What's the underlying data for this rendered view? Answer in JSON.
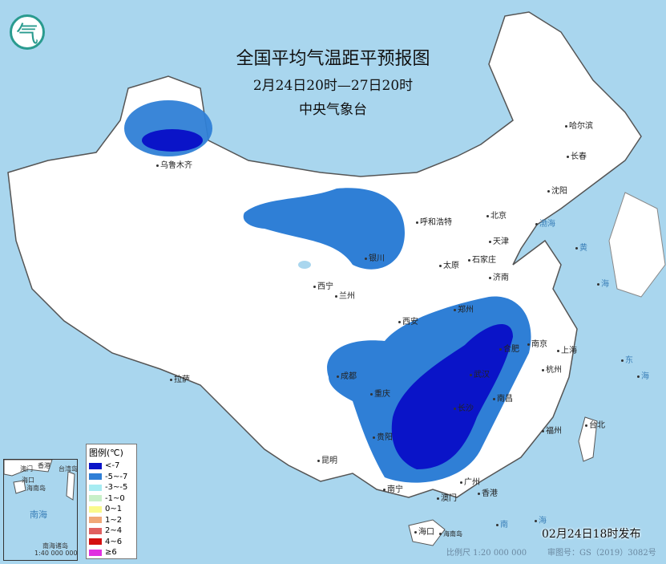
{
  "header": {
    "title": "全国平均气温距平预报图",
    "period": "2月24日20时—27日20时",
    "issuer": "中央气象台"
  },
  "logo": {
    "text": "气"
  },
  "cities": [
    {
      "name": "乌鲁木齐"
    },
    {
      "name": "哈尔滨"
    },
    {
      "name": "长春"
    },
    {
      "name": "沈阳"
    },
    {
      "name": "北京"
    },
    {
      "name": "呼和浩特"
    },
    {
      "name": "天津"
    },
    {
      "name": "石家庄"
    },
    {
      "name": "太原"
    },
    {
      "name": "济南"
    },
    {
      "name": "银川"
    },
    {
      "name": "西宁"
    },
    {
      "name": "兰州"
    },
    {
      "name": "郑州"
    },
    {
      "name": "西安"
    },
    {
      "name": "南京"
    },
    {
      "name": "合肥"
    },
    {
      "name": "上海"
    },
    {
      "name": "杭州"
    },
    {
      "name": "成都"
    },
    {
      "name": "重庆"
    },
    {
      "name": "武汉"
    },
    {
      "name": "长沙"
    },
    {
      "name": "南昌"
    },
    {
      "name": "福州"
    },
    {
      "name": "台北"
    },
    {
      "name": "拉萨"
    },
    {
      "name": "贵阳"
    },
    {
      "name": "昆明"
    },
    {
      "name": "南宁"
    },
    {
      "name": "广州"
    },
    {
      "name": "香港"
    },
    {
      "name": "澳门"
    },
    {
      "name": "海口"
    },
    {
      "name": "海南岛"
    }
  ],
  "legend": {
    "title": "图例(℃)",
    "items": [
      {
        "label": "<-7",
        "color": "#0a14c8"
      },
      {
        "label": "-5~-7",
        "color": "#2f7fd6"
      },
      {
        "label": "-3~-5",
        "color": "#a7ecf2"
      },
      {
        "label": "-1~0",
        "color": "#c8f0c8"
      },
      {
        "label": "0~1",
        "color": "#fafa8c"
      },
      {
        "label": "1~2",
        "color": "#f0a878"
      },
      {
        "label": "2~4",
        "color": "#e06060"
      },
      {
        "label": "4~6",
        "color": "#d41010"
      },
      {
        "label": "≥6",
        "color": "#e030e0"
      }
    ]
  },
  "inset": {
    "labels": [
      "澳门",
      "香港",
      "台湾岛",
      "海口",
      "海南岛",
      "南海",
      "南海诸岛"
    ],
    "scale": "1:40 000 000"
  },
  "footer": {
    "published": "02月24日18时发布",
    "scale": "比例尺 1:20 000 000",
    "review_no": "审图号：GS（2019）3082号"
  },
  "sea_labels": [
    "南",
    "海",
    "东",
    "海",
    "黄",
    "海",
    "渤海"
  ]
}
